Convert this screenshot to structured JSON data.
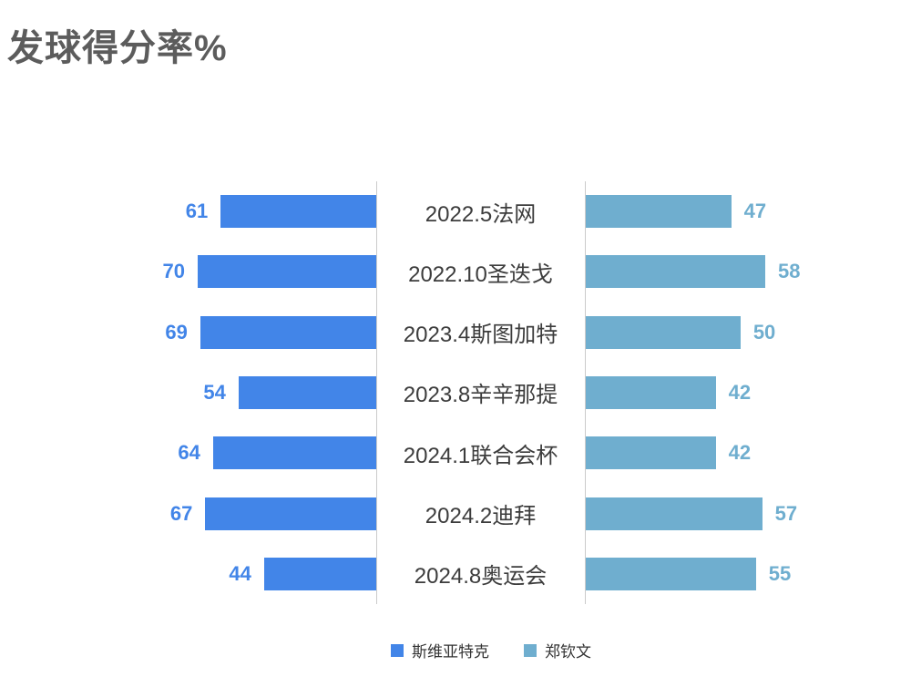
{
  "title": "发球得分率%",
  "chart_data": {
    "type": "bar",
    "variant": "butterfly-horizontal",
    "title": "发球得分率%",
    "categories": [
      "2022.5法网",
      "2022.10圣迭戈",
      "2023.4斯图加特",
      "2023.8辛辛那提",
      "2024.1联合会杯",
      "2024.2迪拜",
      "2024.8奥运会"
    ],
    "series": [
      {
        "name": "斯维亚特克",
        "side": "left",
        "color": "#4285e8",
        "values": [
          61,
          70,
          69,
          54,
          64,
          67,
          44
        ]
      },
      {
        "name": "郑钦文",
        "side": "right",
        "color": "#6faecf",
        "values": [
          47,
          58,
          50,
          42,
          42,
          57,
          55
        ]
      }
    ],
    "value_labels_shown": true,
    "legend_position": "bottom",
    "grid": "two vertical axis lines flanking center category labels",
    "axis_line_color": "#cbcbcb"
  },
  "legend": {
    "items": [
      {
        "label": "斯维亚特克",
        "color": "#4285e8"
      },
      {
        "label": "郑钦文",
        "color": "#6faecf"
      }
    ]
  },
  "colors": {
    "title_text": "#5c5c5c",
    "category_text": "#3c3c3c",
    "background": "#ffffff"
  }
}
